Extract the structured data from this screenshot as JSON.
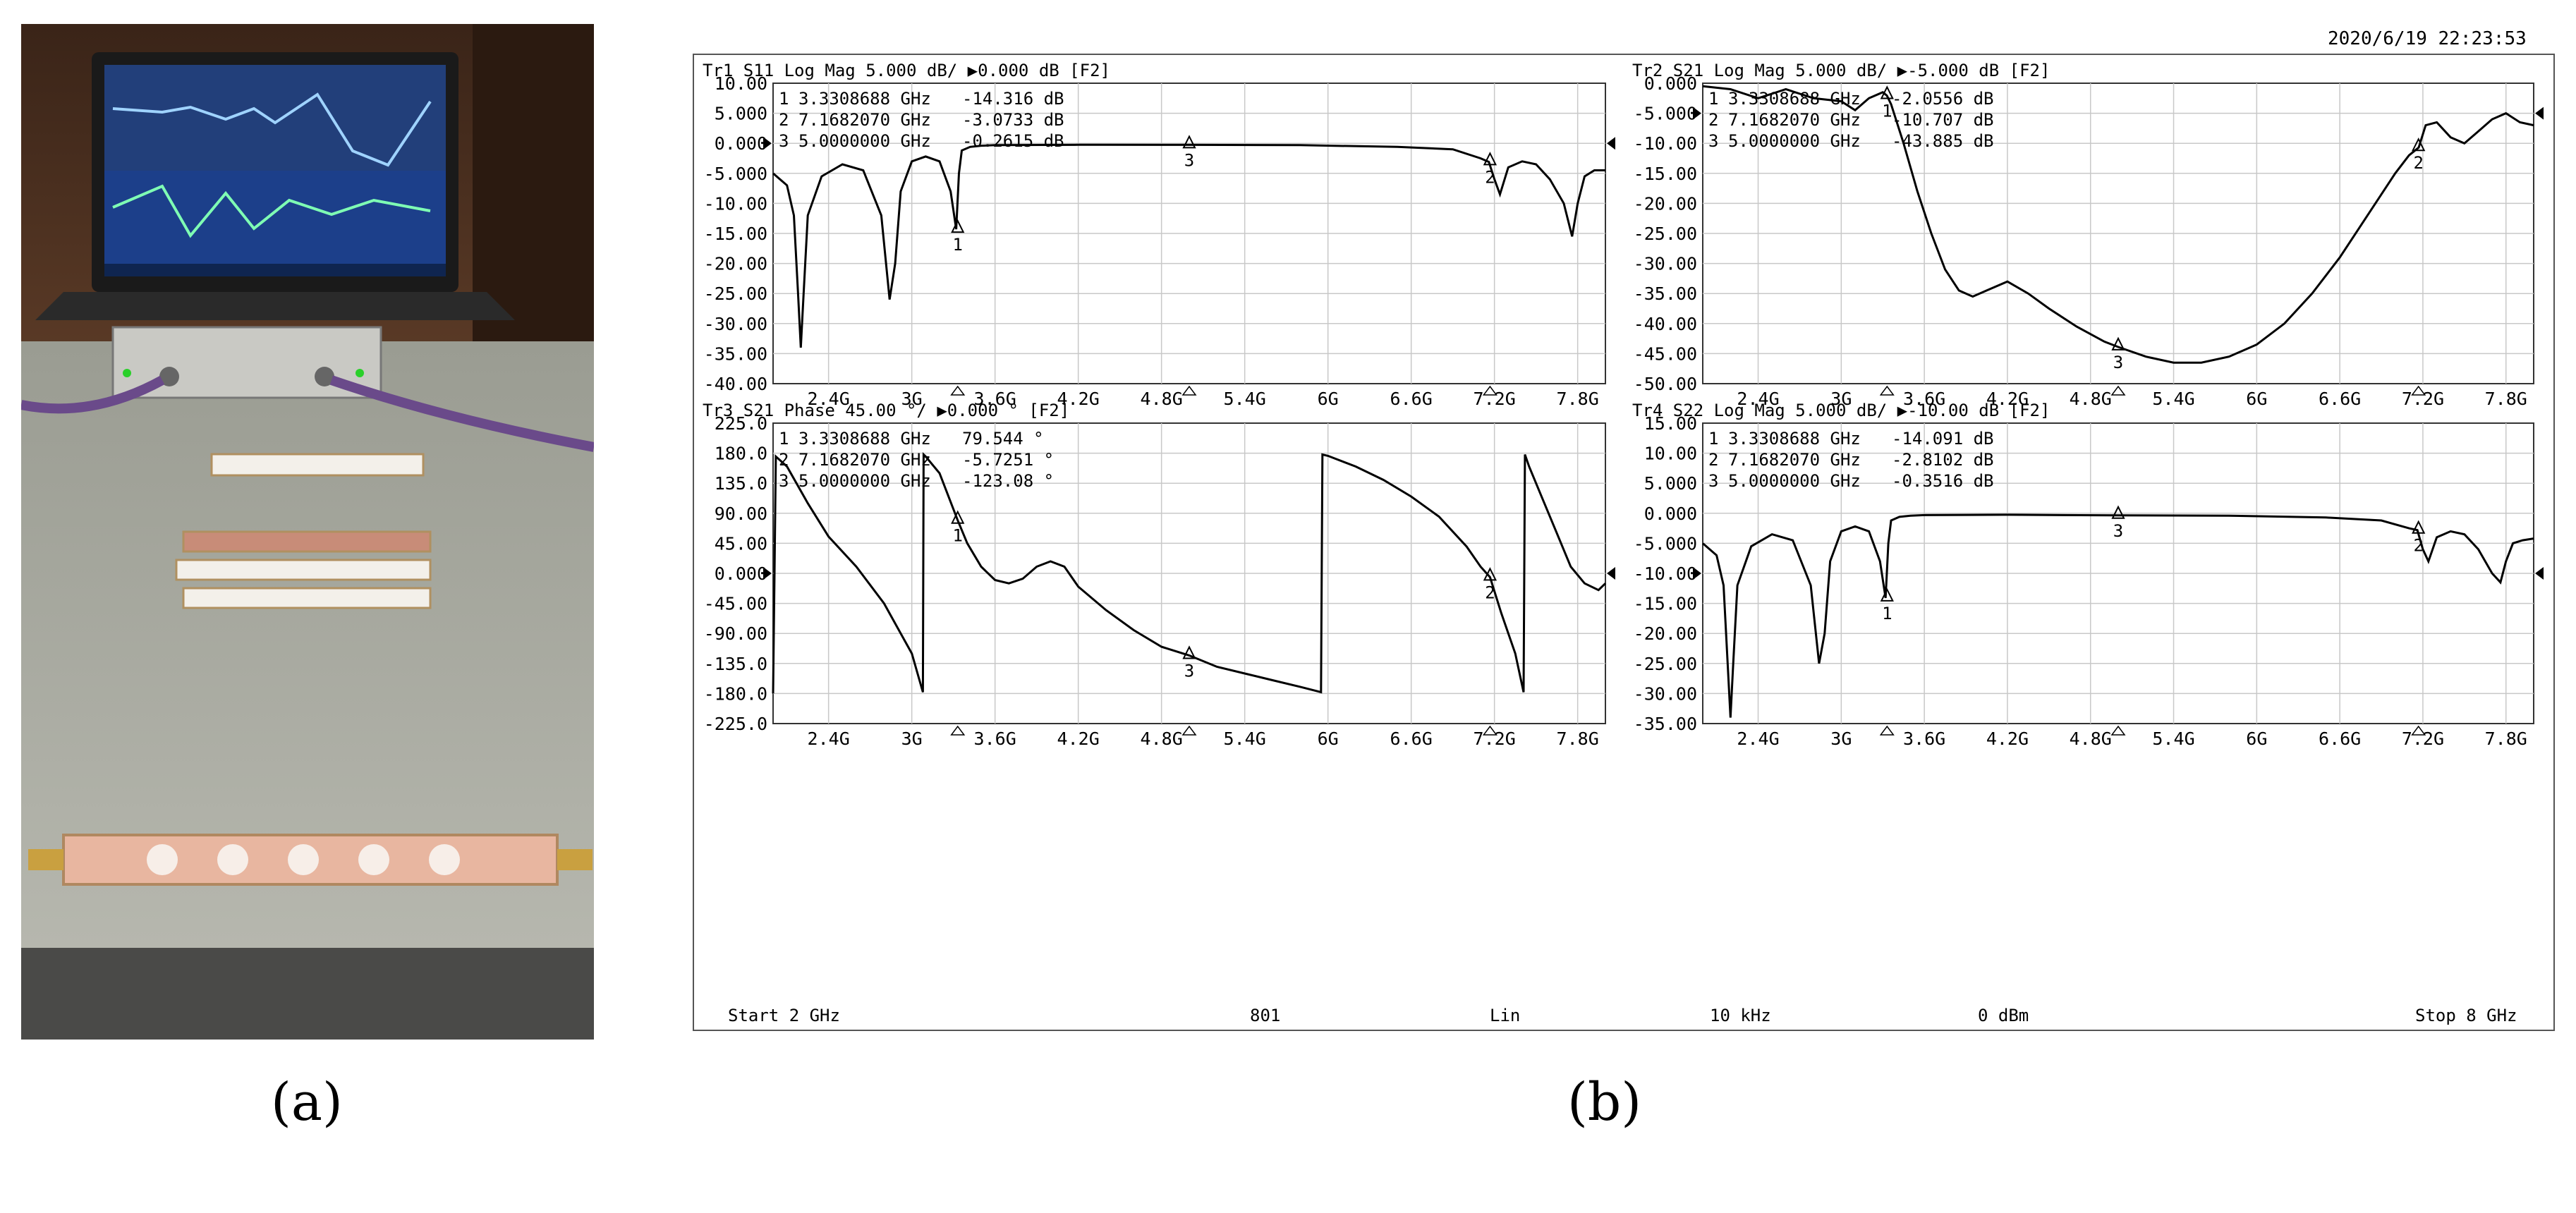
{
  "captions": {
    "a": "(a)",
    "b": "(b)"
  },
  "timestamp": "2020/6/19 22:23:53",
  "footer": {
    "start": "Start 2 GHz",
    "points": "801",
    "sweep": "Lin",
    "ifbw": "10 kHz",
    "power": "0 dBm",
    "stop": "Stop 8 GHz"
  },
  "colors": {
    "trace": "#000000",
    "grid": "#c8c8c8",
    "frame": "#333333"
  },
  "photo_icons": [
    "laptop-icon",
    "vna-box-icon",
    "cable-icon",
    "test-board-icon"
  ],
  "chart_data": [
    {
      "type": "line",
      "trace": "Tr1",
      "header": "Tr1 S11 Log Mag 5.000 dB/ ▶0.000 dB [F2]",
      "x_tick_labels": [
        "2.4G",
        "3G",
        "3.6G",
        "4.2G",
        "4.8G",
        "5.4G",
        "6G",
        "6.6G",
        "7.2G",
        "7.8G"
      ],
      "x_ticks": [
        2.4,
        3.0,
        3.6,
        4.2,
        4.8,
        5.4,
        6.0,
        6.6,
        7.2,
        7.8
      ],
      "xlim": [
        2.0,
        8.0
      ],
      "y_tick_labels": [
        "10.00",
        "5.000",
        "0.000",
        "-5.000",
        "-10.00",
        "-15.00",
        "-20.00",
        "-25.00",
        "-30.00",
        "-35.00",
        "-40.00"
      ],
      "ylim": [
        -40,
        10
      ],
      "ref_value": 0,
      "markers": [
        {
          "id": "1",
          "freq": "3.3308688 GHz",
          "value": "-14.316 dB",
          "x": 3.3308688,
          "y": -14.316
        },
        {
          "id": "2",
          "freq": "7.1682070 GHz",
          "value": "-3.0733 dB",
          "x": 7.168207,
          "y": -3.0733
        },
        {
          "id": "3",
          "freq": "5.0000000 GHz",
          "value": "-0.2615 dB",
          "x": 5.0,
          "y": -0.2615
        }
      ],
      "x": [
        2.0,
        2.1,
        2.15,
        2.18,
        2.2,
        2.22,
        2.25,
        2.35,
        2.5,
        2.65,
        2.78,
        2.84,
        2.88,
        2.92,
        3.0,
        3.1,
        3.2,
        3.28,
        3.32,
        3.34,
        3.36,
        3.42,
        3.5,
        3.6,
        4.2,
        5.0,
        5.8,
        6.5,
        6.9,
        7.1,
        7.16,
        7.2,
        7.24,
        7.3,
        7.4,
        7.5,
        7.6,
        7.7,
        7.76,
        7.8,
        7.85,
        7.92,
        8.0
      ],
      "y": [
        -5,
        -7,
        -12,
        -25,
        -34,
        -25,
        -12,
        -5.5,
        -3.5,
        -4.5,
        -12,
        -26,
        -20,
        -8,
        -3,
        -2.2,
        -3,
        -8,
        -14.3,
        -5,
        -1.2,
        -0.6,
        -0.4,
        -0.3,
        -0.25,
        -0.26,
        -0.3,
        -0.6,
        -1,
        -2.5,
        -3.1,
        -6,
        -8.5,
        -4,
        -3,
        -3.5,
        -6,
        -10,
        -15.5,
        -10,
        -5.5,
        -4.5,
        -4.5
      ]
    },
    {
      "type": "line",
      "trace": "Tr2",
      "header": "Tr2 S21 Log Mag 5.000 dB/ ▶-5.000 dB [F2]",
      "x_tick_labels": [
        "2.4G",
        "3G",
        "3.6G",
        "4.2G",
        "4.8G",
        "5.4G",
        "6G",
        "6.6G",
        "7.2G",
        "7.8G"
      ],
      "x_ticks": [
        2.4,
        3.0,
        3.6,
        4.2,
        4.8,
        5.4,
        6.0,
        6.6,
        7.2,
        7.8
      ],
      "xlim": [
        2.0,
        8.0
      ],
      "y_tick_labels": [
        "0.000",
        "-5.000",
        "-10.00",
        "-15.00",
        "-20.00",
        "-25.00",
        "-30.00",
        "-35.00",
        "-40.00",
        "-45.00",
        "-50.00"
      ],
      "ylim": [
        -50,
        0
      ],
      "ref_value": -5,
      "markers": [
        {
          "id": "1",
          "freq": "3.3308688 GHz",
          "value": "-2.0556 dB",
          "x": 3.3308688,
          "y": -2.0556
        },
        {
          "id": "2",
          "freq": "7.1682070 GHz",
          "value": "-10.707 dB",
          "x": 7.168207,
          "y": -10.707
        },
        {
          "id": "3",
          "freq": "5.0000000 GHz",
          "value": "-43.885 dB",
          "x": 5.0,
          "y": -43.885
        }
      ],
      "x": [
        2.0,
        2.2,
        2.4,
        2.6,
        2.8,
        3.0,
        3.1,
        3.2,
        3.3,
        3.33,
        3.36,
        3.45,
        3.55,
        3.65,
        3.75,
        3.85,
        3.95,
        4.05,
        4.2,
        4.35,
        4.5,
        4.7,
        4.9,
        5.0,
        5.2,
        5.4,
        5.6,
        5.8,
        6.0,
        6.2,
        6.4,
        6.6,
        6.8,
        7.0,
        7.1,
        7.17,
        7.22,
        7.3,
        7.4,
        7.5,
        7.6,
        7.7,
        7.8,
        7.9,
        8.0
      ],
      "y": [
        -0.5,
        -1,
        -2.5,
        -1,
        -2.5,
        -3,
        -4.5,
        -2.5,
        -1.5,
        -2.06,
        -3.5,
        -10,
        -18,
        -25,
        -31,
        -34.5,
        -35.5,
        -34.5,
        -33,
        -35,
        -37.5,
        -40.5,
        -43,
        -43.9,
        -45.5,
        -46.5,
        -46.5,
        -45.5,
        -43.5,
        -40,
        -35,
        -29,
        -22,
        -15,
        -12,
        -10.7,
        -7,
        -6.5,
        -9,
        -10,
        -8,
        -6,
        -5,
        -6.5,
        -7
      ]
    },
    {
      "type": "line",
      "trace": "Tr3",
      "header": "Tr3 S21 Phase 45.00 °/ ▶0.000 ° [F2]",
      "x_tick_labels": [
        "2.4G",
        "3G",
        "3.6G",
        "4.2G",
        "4.8G",
        "5.4G",
        "6G",
        "6.6G",
        "7.2G",
        "7.8G"
      ],
      "x_ticks": [
        2.4,
        3.0,
        3.6,
        4.2,
        4.8,
        5.4,
        6.0,
        6.6,
        7.2,
        7.8
      ],
      "xlim": [
        2.0,
        8.0
      ],
      "y_tick_labels": [
        "225.0",
        "180.0",
        "135.0",
        "90.00",
        "45.00",
        "0.000",
        "-45.00",
        "-90.00",
        "-135.0",
        "-180.0",
        "-225.0"
      ],
      "ylim": [
        -225,
        225
      ],
      "ref_value": 0,
      "markers": [
        {
          "id": "1",
          "freq": "3.3308688 GHz",
          "value": "79.544 °",
          "x": 3.3308688,
          "y": 79.544
        },
        {
          "id": "2",
          "freq": "7.1682070 GHz",
          "value": "-5.7251 °",
          "x": 7.168207,
          "y": -5.7251
        },
        {
          "id": "3",
          "freq": "5.0000000 GHz",
          "value": "-123.08 °",
          "x": 5.0,
          "y": -123.08
        }
      ],
      "x": [
        2.0,
        2.01,
        2.02,
        2.1,
        2.25,
        2.4,
        2.6,
        2.8,
        3.0,
        3.08,
        3.085,
        3.1,
        3.2,
        3.3308688,
        3.4,
        3.5,
        3.6,
        3.7,
        3.8,
        3.9,
        4.0,
        4.1,
        4.2,
        4.4,
        4.6,
        4.8,
        5.0,
        5.2,
        5.4,
        5.6,
        5.8,
        5.95,
        5.96,
        6.0,
        6.2,
        6.4,
        6.6,
        6.8,
        7.0,
        7.1,
        7.168207,
        7.25,
        7.35,
        7.41,
        7.42,
        7.45,
        7.55,
        7.65,
        7.75,
        7.85,
        7.95,
        8.0
      ],
      "y": [
        -180,
        0,
        175,
        160,
        105,
        55,
        10,
        -45,
        -120,
        -178,
        178,
        175,
        150,
        79.5,
        45,
        10,
        -10,
        -15,
        -8,
        10,
        18,
        10,
        -20,
        -55,
        -85,
        -110,
        -123,
        -140,
        -150,
        -160,
        -170,
        -178,
        178,
        176,
        160,
        140,
        115,
        85,
        40,
        10,
        -5.7,
        -60,
        -120,
        -178,
        178,
        160,
        110,
        60,
        10,
        -15,
        -25,
        -15
      ]
    },
    {
      "type": "line",
      "trace": "Tr4",
      "header": "Tr4 S22 Log Mag 5.000 dB/ ▶-10.00 dB [F2]",
      "x_tick_labels": [
        "2.4G",
        "3G",
        "3.6G",
        "4.2G",
        "4.8G",
        "5.4G",
        "6G",
        "6.6G",
        "7.2G",
        "7.8G"
      ],
      "x_ticks": [
        2.4,
        3.0,
        3.6,
        4.2,
        4.8,
        5.4,
        6.0,
        6.6,
        7.2,
        7.8
      ],
      "xlim": [
        2.0,
        8.0
      ],
      "y_tick_labels": [
        "15.00",
        "10.00",
        "5.000",
        "0.000",
        "-5.000",
        "-10.00",
        "-15.00",
        "-20.00",
        "-25.00",
        "-30.00",
        "-35.00"
      ],
      "ylim": [
        -35,
        15
      ],
      "ref_value": -10,
      "markers": [
        {
          "id": "1",
          "freq": "3.3308688 GHz",
          "value": "-14.091 dB",
          "x": 3.3308688,
          "y": -14.091
        },
        {
          "id": "2",
          "freq": "7.1682070 GHz",
          "value": "-2.8102 dB",
          "x": 7.168207,
          "y": -2.8102
        },
        {
          "id": "3",
          "freq": "5.0000000 GHz",
          "value": "-0.3516 dB",
          "x": 5.0,
          "y": -0.3516
        }
      ],
      "x": [
        2.0,
        2.1,
        2.15,
        2.18,
        2.2,
        2.22,
        2.25,
        2.35,
        2.5,
        2.65,
        2.78,
        2.84,
        2.88,
        2.92,
        3.0,
        3.1,
        3.2,
        3.28,
        3.32,
        3.34,
        3.36,
        3.42,
        3.5,
        3.6,
        4.2,
        5.0,
        5.8,
        6.5,
        6.9,
        7.1,
        7.16,
        7.2,
        7.24,
        7.3,
        7.4,
        7.5,
        7.6,
        7.7,
        7.76,
        7.8,
        7.85,
        7.92,
        8.0
      ],
      "y": [
        -5,
        -7,
        -12,
        -25,
        -34,
        -25,
        -12,
        -5.5,
        -3.5,
        -4.5,
        -12,
        -25,
        -20,
        -8,
        -3,
        -2.2,
        -3,
        -8,
        -14.1,
        -5,
        -1.2,
        -0.6,
        -0.4,
        -0.3,
        -0.25,
        -0.35,
        -0.4,
        -0.7,
        -1.2,
        -2.5,
        -2.8,
        -6,
        -8,
        -4,
        -3,
        -3.5,
        -6,
        -10,
        -11.5,
        -8,
        -5,
        -4.5,
        -4.2
      ]
    }
  ]
}
